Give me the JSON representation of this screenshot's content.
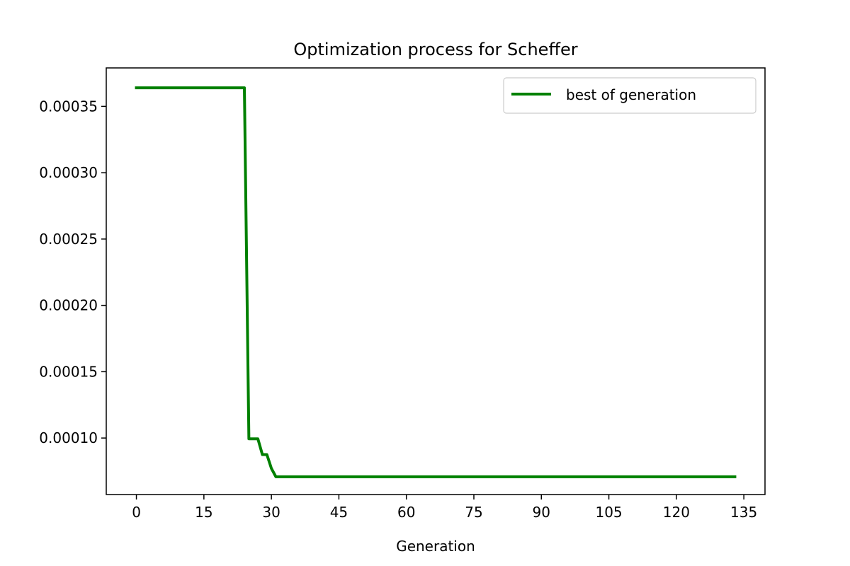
{
  "chart_data": {
    "type": "line",
    "title": "Optimization process for Scheffer",
    "xlabel": "Generation",
    "ylabel": "",
    "xlim": [
      -6.7,
      139.7
    ],
    "ylim": [
      5.74e-05,
      0.000379
    ],
    "x_ticks": [
      0,
      15,
      30,
      45,
      60,
      75,
      90,
      105,
      120,
      135
    ],
    "y_ticks": [
      0.0001,
      0.00015,
      0.0002,
      0.00025,
      0.0003,
      0.00035
    ],
    "y_tick_labels": [
      "0.00010",
      "0.00015",
      "0.00020",
      "0.00025",
      "0.00030",
      "0.00035"
    ],
    "grid": false,
    "legend": {
      "position": "top-right"
    },
    "series": [
      {
        "name": "best of generation",
        "color": "#008000",
        "x": [
          0,
          24,
          25,
          26,
          27,
          28,
          29,
          30,
          31,
          133
        ],
        "y": [
          0.000364,
          0.000364,
          9.94e-05,
          9.94e-05,
          9.94e-05,
          8.75e-05,
          8.75e-05,
          7.71e-05,
          7.08e-05,
          7.08e-05
        ]
      }
    ]
  }
}
